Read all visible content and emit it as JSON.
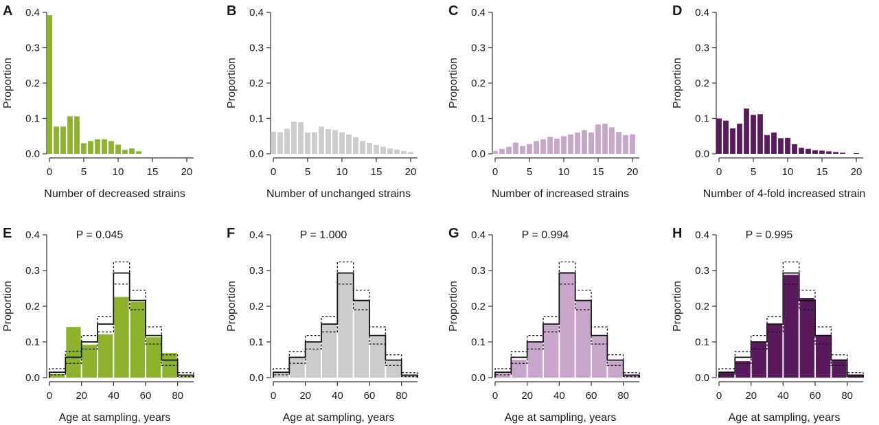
{
  "chart_data": [
    {
      "panel": "A",
      "type": "bar",
      "color": "#8db22b",
      "xlabel": "Number of decreased strains",
      "ylabel": "Proportion",
      "ylim": [
        0,
        0.4
      ],
      "yticks": [
        "0.0",
        "0.1",
        "0.2",
        "0.3",
        "0.4"
      ],
      "xlim": [
        0,
        21
      ],
      "xticks": [
        "0",
        "5",
        "10",
        "15",
        "20"
      ],
      "x": [
        0,
        1,
        2,
        3,
        4,
        5,
        6,
        7,
        8,
        9,
        10,
        11,
        12,
        13,
        14,
        15,
        16,
        17,
        18,
        19,
        20
      ],
      "values": [
        0.392,
        0.077,
        0.077,
        0.106,
        0.106,
        0.03,
        0.036,
        0.041,
        0.041,
        0.036,
        0.026,
        0.011,
        0.015,
        0.007,
        0,
        0,
        0,
        0,
        0,
        0,
        0
      ]
    },
    {
      "panel": "B",
      "type": "bar",
      "color": "#cccccc",
      "xlabel": "Number of unchanged strains",
      "ylabel": "Proportion",
      "ylim": [
        0,
        0.4
      ],
      "yticks": [
        "0.0",
        "0.1",
        "0.2",
        "0.3",
        "0.4"
      ],
      "xlim": [
        0,
        21
      ],
      "xticks": [
        "0",
        "5",
        "10",
        "15",
        "20"
      ],
      "x": [
        0,
        1,
        2,
        3,
        4,
        5,
        6,
        7,
        8,
        9,
        10,
        11,
        12,
        13,
        14,
        15,
        16,
        17,
        18,
        19,
        20
      ],
      "values": [
        0.063,
        0.061,
        0.071,
        0.091,
        0.089,
        0.06,
        0.061,
        0.077,
        0.07,
        0.067,
        0.061,
        0.055,
        0.047,
        0.036,
        0.031,
        0.025,
        0.02,
        0.015,
        0.012,
        0.008,
        0.005
      ]
    },
    {
      "panel": "C",
      "type": "bar",
      "color": "#c8a6cc",
      "xlabel": "Number of increased strains",
      "ylabel": "Proportion",
      "ylim": [
        0,
        0.4
      ],
      "yticks": [
        "0.0",
        "0.1",
        "0.2",
        "0.3",
        "0.4"
      ],
      "xlim": [
        0,
        21
      ],
      "xticks": [
        "0",
        "5",
        "10",
        "15",
        "20"
      ],
      "x": [
        0,
        1,
        2,
        3,
        4,
        5,
        6,
        7,
        8,
        9,
        10,
        11,
        12,
        13,
        14,
        15,
        16,
        17,
        18,
        19,
        20
      ],
      "values": [
        0.008,
        0.014,
        0.02,
        0.032,
        0.022,
        0.027,
        0.036,
        0.041,
        0.048,
        0.043,
        0.05,
        0.055,
        0.06,
        0.067,
        0.06,
        0.083,
        0.085,
        0.075,
        0.062,
        0.053,
        0.055
      ]
    },
    {
      "panel": "D",
      "type": "bar",
      "color": "#5c1a5e",
      "xlabel": "Number of 4-fold increased strain",
      "ylabel": "Proportion",
      "ylim": [
        0,
        0.4
      ],
      "yticks": [
        "0.0",
        "0.1",
        "0.2",
        "0.3",
        "0.4"
      ],
      "xlim": [
        0,
        21
      ],
      "xticks": [
        "0",
        "5",
        "10",
        "15",
        "20"
      ],
      "x": [
        0,
        1,
        2,
        3,
        4,
        5,
        6,
        7,
        8,
        9,
        10,
        11,
        12,
        13,
        14,
        15,
        16,
        17,
        18,
        19,
        20
      ],
      "values": [
        0.1,
        0.094,
        0.072,
        0.085,
        0.128,
        0.11,
        0.112,
        0.053,
        0.06,
        0.044,
        0.045,
        0.027,
        0.017,
        0.014,
        0.01,
        0.009,
        0.007,
        0.005,
        0.003,
        0,
        0.002
      ]
    },
    {
      "panel": "E",
      "type": "bar",
      "color": "#8db22b",
      "title": "P = 0.045",
      "xlabel": "Age at sampling, years",
      "ylabel": "Proportion",
      "ylim": [
        0,
        0.4
      ],
      "yticks": [
        "0.0",
        "0.1",
        "0.2",
        "0.3",
        "0.4"
      ],
      "xlim": [
        0,
        90
      ],
      "xticks": [
        "0",
        "20",
        "40",
        "60",
        "80"
      ],
      "bins": [
        [
          0,
          10
        ],
        [
          10,
          20
        ],
        [
          20,
          30
        ],
        [
          30,
          40
        ],
        [
          40,
          50
        ],
        [
          50,
          60
        ],
        [
          60,
          70
        ],
        [
          70,
          80
        ],
        [
          80,
          90
        ]
      ],
      "values": [
        0.01,
        0.142,
        0.092,
        0.121,
        0.226,
        0.212,
        0.113,
        0.069,
        0.003
      ],
      "expected": [
        0.015,
        0.057,
        0.1,
        0.15,
        0.293,
        0.216,
        0.118,
        0.049,
        0.007
      ],
      "expected_upper": [
        0.025,
        0.073,
        0.118,
        0.171,
        0.324,
        0.245,
        0.142,
        0.064,
        0.014
      ],
      "expected_lower": [
        0.008,
        0.04,
        0.08,
        0.128,
        0.262,
        0.19,
        0.094,
        0.034,
        0.003
      ]
    },
    {
      "panel": "F",
      "type": "bar",
      "color": "#cccccc",
      "title": "P = 1.000",
      "xlabel": "Age at sampling, years",
      "ylabel": "Proportion",
      "ylim": [
        0,
        0.4
      ],
      "yticks": [
        "0.0",
        "0.1",
        "0.2",
        "0.3",
        "0.4"
      ],
      "xlim": [
        0,
        90
      ],
      "xticks": [
        "0",
        "20",
        "40",
        "60",
        "80"
      ],
      "bins": [
        [
          0,
          10
        ],
        [
          10,
          20
        ],
        [
          20,
          30
        ],
        [
          30,
          40
        ],
        [
          40,
          50
        ],
        [
          50,
          60
        ],
        [
          60,
          70
        ],
        [
          70,
          80
        ],
        [
          80,
          90
        ]
      ],
      "values": [
        0.014,
        0.056,
        0.1,
        0.149,
        0.292,
        0.215,
        0.117,
        0.048,
        0.007
      ],
      "expected": [
        0.015,
        0.057,
        0.1,
        0.15,
        0.293,
        0.216,
        0.118,
        0.049,
        0.007
      ],
      "expected_upper": [
        0.025,
        0.073,
        0.118,
        0.171,
        0.324,
        0.245,
        0.142,
        0.064,
        0.014
      ],
      "expected_lower": [
        0.008,
        0.04,
        0.08,
        0.128,
        0.262,
        0.19,
        0.094,
        0.034,
        0.003
      ]
    },
    {
      "panel": "G",
      "type": "bar",
      "color": "#c8a6cc",
      "title": "P = 0.994",
      "xlabel": "Age at sampling, years",
      "ylabel": "Proportion",
      "ylim": [
        0,
        0.4
      ],
      "yticks": [
        "0.0",
        "0.1",
        "0.2",
        "0.3",
        "0.4"
      ],
      "xlim": [
        0,
        90
      ],
      "xticks": [
        "0",
        "20",
        "40",
        "60",
        "80"
      ],
      "bins": [
        [
          0,
          10
        ],
        [
          10,
          20
        ],
        [
          20,
          30
        ],
        [
          30,
          40
        ],
        [
          40,
          50
        ],
        [
          50,
          60
        ],
        [
          60,
          70
        ],
        [
          70,
          80
        ],
        [
          80,
          90
        ]
      ],
      "values": [
        0.012,
        0.05,
        0.099,
        0.148,
        0.296,
        0.217,
        0.116,
        0.047,
        0.007
      ],
      "expected": [
        0.015,
        0.057,
        0.1,
        0.15,
        0.293,
        0.216,
        0.118,
        0.049,
        0.007
      ],
      "expected_upper": [
        0.025,
        0.073,
        0.118,
        0.171,
        0.324,
        0.245,
        0.142,
        0.064,
        0.014
      ],
      "expected_lower": [
        0.008,
        0.04,
        0.08,
        0.128,
        0.262,
        0.19,
        0.094,
        0.034,
        0.003
      ]
    },
    {
      "panel": "H",
      "type": "bar",
      "color": "#5c1a5e",
      "title": "P = 0.995",
      "xlabel": "Age at sampling, years",
      "ylabel": "Proportion",
      "ylim": [
        0,
        0.4
      ],
      "yticks": [
        "0.0",
        "0.1",
        "0.2",
        "0.3",
        "0.4"
      ],
      "xlim": [
        0,
        90
      ],
      "xticks": [
        "0",
        "20",
        "40",
        "60",
        "80"
      ],
      "bins": [
        [
          0,
          10
        ],
        [
          10,
          20
        ],
        [
          20,
          30
        ],
        [
          30,
          40
        ],
        [
          40,
          50
        ],
        [
          50,
          60
        ],
        [
          60,
          70
        ],
        [
          70,
          80
        ],
        [
          80,
          90
        ]
      ],
      "values": [
        0.015,
        0.046,
        0.101,
        0.15,
        0.288,
        0.223,
        0.118,
        0.051,
        0.007
      ],
      "expected": [
        0.015,
        0.057,
        0.1,
        0.15,
        0.293,
        0.216,
        0.118,
        0.049,
        0.007
      ],
      "expected_upper": [
        0.025,
        0.073,
        0.118,
        0.171,
        0.324,
        0.245,
        0.142,
        0.064,
        0.014
      ],
      "expected_lower": [
        0.008,
        0.04,
        0.08,
        0.128,
        0.262,
        0.19,
        0.094,
        0.034,
        0.003
      ]
    }
  ]
}
